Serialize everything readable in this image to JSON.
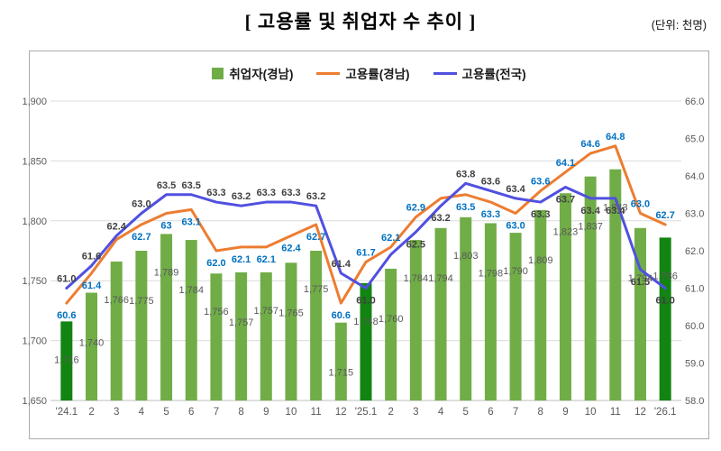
{
  "title": "[ 고용률 및 취업자 수 추이 ]",
  "unit_note": "(단위: 천명)",
  "legend": [
    {
      "label": "취업자(경남)",
      "type": "bar",
      "color": "#70AD47"
    },
    {
      "label": "고용률(경남)",
      "type": "line",
      "color": "#ED7D31"
    },
    {
      "label": "고용률(전국)",
      "type": "line",
      "color": "#5050E0"
    }
  ],
  "colors": {
    "bar": "#70AD47",
    "bar_highlight": "#128412",
    "gyeongnam_line": "#ED7D31",
    "national_line": "#5050E0",
    "gyeongnam_label": "#0070C0",
    "national_label": "#404040",
    "bar_label": "#595959",
    "axis_text": "#595959",
    "gridline": "#DCDCDC",
    "baseline": "#BFBFBF"
  },
  "chart_data": {
    "type": "bar+line",
    "categories": [
      "'24.1",
      "2",
      "3",
      "4",
      "5",
      "6",
      "7",
      "8",
      "9",
      "10",
      "11",
      "12",
      "'25.1",
      "2",
      "3",
      "4",
      "5",
      "6",
      "7",
      "8",
      "9",
      "10",
      "11",
      "12",
      "'26.1"
    ],
    "left_axis": {
      "min": 1650,
      "max": 1900,
      "tick_values": [
        1900,
        1850,
        1800,
        1750,
        1700,
        1650
      ],
      "tick_labels": [
        "1,900",
        "1,850",
        "1,800",
        "1,750",
        "1,700",
        "1,650"
      ]
    },
    "right_axis": {
      "min": 58,
      "max": 66,
      "tick_values": [
        66,
        65,
        64,
        63,
        62,
        61,
        60,
        59,
        58
      ],
      "tick_labels": [
        "66.0",
        "65.0",
        "64.0",
        "63.0",
        "62.0",
        "61.0",
        "60.0",
        "59.0",
        "58.0"
      ]
    },
    "grid": true,
    "legend_position": "top",
    "series": [
      {
        "name": "취업자(경남)",
        "type": "bar",
        "axis": "left",
        "highlight_indices": [
          0,
          12,
          24
        ],
        "values": [
          1716,
          1740,
          1766,
          1775,
          1789,
          1784,
          1756,
          1757,
          1757,
          1765,
          1775,
          1715,
          1748,
          1760,
          1784,
          1794,
          1803,
          1798,
          1790,
          1809,
          1823,
          1837,
          1843,
          1794,
          1786
        ],
        "labels": [
          "1,716",
          "1,740",
          "1,766",
          "1,775",
          "1,789",
          "1,784",
          "1,756",
          "1,757",
          "1,757",
          "1,765",
          "1,775",
          "1,715",
          "1,748",
          "1,760",
          "1,784",
          "1,794",
          "1,803",
          "1,798",
          "1,790",
          "1,809",
          "1,823",
          "1,837",
          "1,843",
          "1,794",
          "1,786"
        ]
      },
      {
        "name": "고용률(경남)",
        "type": "line",
        "axis": "right",
        "values": [
          60.6,
          61.4,
          62.3,
          62.7,
          63.0,
          63.1,
          62.0,
          62.1,
          62.1,
          62.4,
          62.7,
          60.6,
          61.7,
          62.1,
          62.9,
          63.4,
          63.5,
          63.3,
          63.0,
          63.6,
          64.1,
          64.6,
          64.8,
          63.0,
          62.7
        ],
        "labels": [
          "60.6",
          "61.4",
          null,
          "62.7",
          "63",
          "63.1",
          "62.0",
          "62.1",
          "62.1",
          "62.4",
          "62.7",
          "60.6",
          "61.7",
          "62.1",
          "62.9",
          null,
          "63.5",
          "63.3",
          "63.0",
          "63.6",
          "64.1",
          "64.6",
          "64.8",
          "63.0",
          "62.7"
        ]
      },
      {
        "name": "고용률(전국)",
        "type": "line",
        "axis": "right",
        "values": [
          61.0,
          61.6,
          62.4,
          63.0,
          63.5,
          63.5,
          63.3,
          63.2,
          63.3,
          63.3,
          63.2,
          61.4,
          61.0,
          61.9,
          62.5,
          63.2,
          63.8,
          63.6,
          63.4,
          63.3,
          63.7,
          63.4,
          63.4,
          61.5,
          61.0
        ],
        "labels": [
          "61.0",
          "61.6",
          "62.4",
          "63.0",
          "63.5",
          "63.5",
          "63.3",
          "63.2",
          "63.3",
          "63.3",
          "63.2",
          "61.4",
          "61.0",
          null,
          "62.5",
          "63.2",
          "63.8",
          "63.6",
          "63.4",
          "63.3",
          "63.7",
          "63.4",
          "63.4",
          "61.5",
          "61.0"
        ]
      }
    ]
  }
}
